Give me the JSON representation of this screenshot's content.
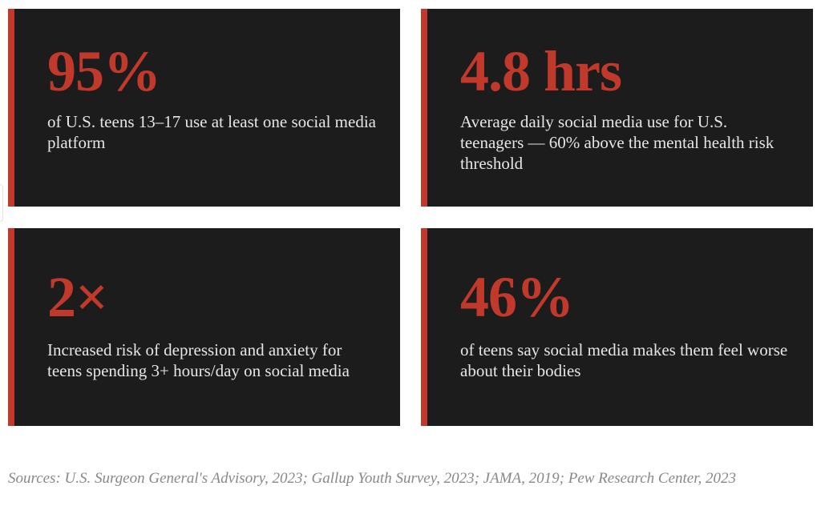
{
  "colors": {
    "accent": "#c0392b",
    "card_background": "#1c1c1c",
    "description_text": "#e6e6e6",
    "sources_text": "#888888"
  },
  "cards": [
    {
      "stat": "95%",
      "description": "of U.S. teens 13–17 use at least one social media platform"
    },
    {
      "stat": "4.8 hrs",
      "description": "Average daily social media use for U.S. teenagers — 60% above the mental health risk threshold"
    },
    {
      "stat": "2×",
      "description": "Increased risk of depression and anxiety for teens spending 3+ hours/day on social media"
    },
    {
      "stat": "46%",
      "description": "of teens say social media makes them feel worse about their bodies"
    }
  ],
  "sources": "Sources: U.S. Surgeon General's Advisory, 2023; Gallup Youth Survey, 2023; JAMA, 2019; Pew Research Center, 2023"
}
